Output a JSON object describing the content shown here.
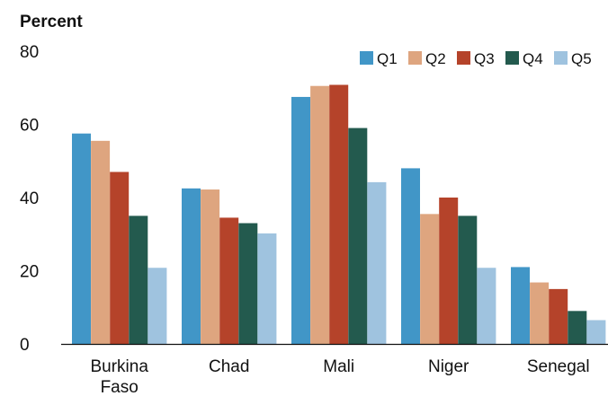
{
  "chart_data": {
    "type": "bar",
    "title": "",
    "xlabel": "",
    "ylabel": "Percent",
    "ylim": [
      0,
      80
    ],
    "yticks": [
      0,
      20,
      40,
      60,
      80
    ],
    "grid": false,
    "legend_position": "top-right",
    "categories": [
      "Burkina Faso",
      "Chad",
      "Mali",
      "Niger",
      "Senegal"
    ],
    "series": [
      {
        "name": "Q1",
        "color": "#4196c7",
        "values": [
          57.5,
          42.5,
          67.5,
          48,
          21
        ]
      },
      {
        "name": "Q2",
        "color": "#dea57f",
        "values": [
          55.5,
          42.2,
          70.5,
          35.5,
          16.8
        ]
      },
      {
        "name": "Q3",
        "color": "#b5432a",
        "values": [
          47,
          34.5,
          70.8,
          40,
          15
        ]
      },
      {
        "name": "Q4",
        "color": "#235a4e",
        "values": [
          35,
          33,
          59,
          35,
          9
        ]
      },
      {
        "name": "Q5",
        "color": "#9fc3df",
        "values": [
          20.8,
          30.2,
          44.2,
          20.8,
          6.5
        ]
      }
    ]
  }
}
